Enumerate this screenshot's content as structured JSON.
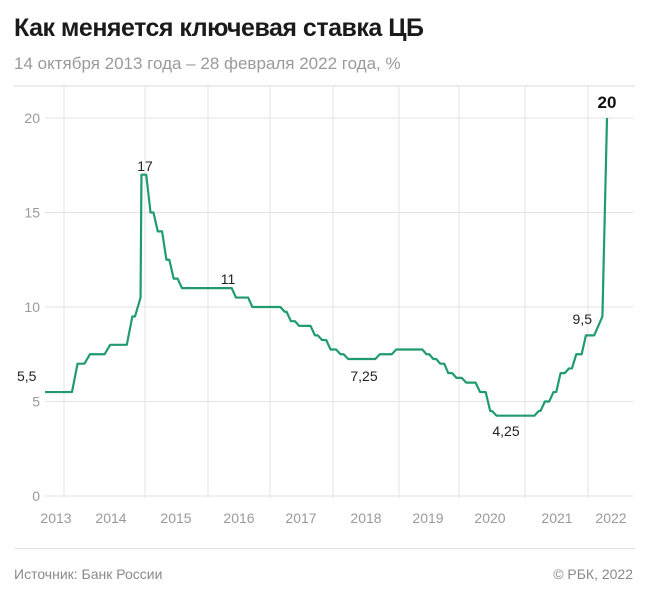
{
  "header": {
    "title": "Как меняется ключевая ставка ЦБ",
    "subtitle": "14 октября 2013 года – 28 февраля 2022 года, %"
  },
  "footer": {
    "source": "Источник: Банк России",
    "copyright": "© РБК, 2022"
  },
  "chart_data": {
    "type": "line",
    "title": "Как меняется ключевая ставка ЦБ",
    "subtitle": "14 октября 2013 года – 28 февраля 2022 года, %",
    "xlabel": "",
    "ylabel": "",
    "ylim": [
      0,
      20
    ],
    "y_ticks": [
      "0",
      "5",
      "10",
      "15",
      "20"
    ],
    "x_ticks": [
      "2013",
      "2014",
      "2015",
      "2016",
      "2017",
      "2018",
      "2019",
      "2020",
      "2021",
      "2022"
    ],
    "grid": true,
    "line_color": "#1f9b6e",
    "series": [
      {
        "points": [
          [
            "2013-10-14",
            5.5
          ],
          [
            "2014-03-03",
            7
          ],
          [
            "2014-04-28",
            7.5
          ],
          [
            "2014-07-28",
            8
          ],
          [
            "2014-11-05",
            9.5
          ],
          [
            "2014-12-12",
            10.5
          ],
          [
            "2014-12-16",
            17
          ],
          [
            "2015-02-02",
            15
          ],
          [
            "2015-03-16",
            14
          ],
          [
            "2015-05-05",
            12.5
          ],
          [
            "2015-06-16",
            11.5
          ],
          [
            "2015-08-03",
            11
          ],
          [
            "2016-06-14",
            10.5
          ],
          [
            "2016-09-19",
            10
          ],
          [
            "2017-03-27",
            9.75
          ],
          [
            "2017-05-02",
            9.25
          ],
          [
            "2017-06-19",
            9
          ],
          [
            "2017-09-18",
            8.5
          ],
          [
            "2017-10-30",
            8.25
          ],
          [
            "2017-12-18",
            7.75
          ],
          [
            "2018-02-12",
            7.5
          ],
          [
            "2018-03-26",
            7.25
          ],
          [
            "2018-09-17",
            7.5
          ],
          [
            "2018-12-17",
            7.75
          ],
          [
            "2019-06-17",
            7.5
          ],
          [
            "2019-07-29",
            7.25
          ],
          [
            "2019-09-09",
            7
          ],
          [
            "2019-10-28",
            6.5
          ],
          [
            "2019-12-16",
            6.25
          ],
          [
            "2020-02-10",
            6
          ],
          [
            "2020-04-27",
            5.5
          ],
          [
            "2020-06-22",
            4.5
          ],
          [
            "2020-07-27",
            4.25
          ],
          [
            "2021-03-22",
            4.5
          ],
          [
            "2021-04-26",
            5
          ],
          [
            "2021-06-15",
            5.5
          ],
          [
            "2021-07-26",
            6.5
          ],
          [
            "2021-09-13",
            6.75
          ],
          [
            "2021-10-25",
            7.5
          ],
          [
            "2021-12-20",
            8.5
          ],
          [
            "2022-02-14",
            9.5
          ],
          [
            "2022-02-28",
            20
          ]
        ]
      }
    ],
    "annotations": [
      {
        "text": "5,5",
        "date": "2013-10-14",
        "value": 5.5
      },
      {
        "text": "17",
        "date": "2014-12-16",
        "value": 17
      },
      {
        "text": "11",
        "date": "2016-01-15",
        "value": 11
      },
      {
        "text": "7,25",
        "date": "2018-03-26",
        "value": 7.25
      },
      {
        "text": "4,25",
        "date": "2020-07-27",
        "value": 4.25
      },
      {
        "text": "9,5",
        "date": "2022-02-14",
        "value": 9.5
      },
      {
        "text": "20",
        "date": "2022-02-28",
        "value": 20,
        "bold": true
      }
    ]
  }
}
